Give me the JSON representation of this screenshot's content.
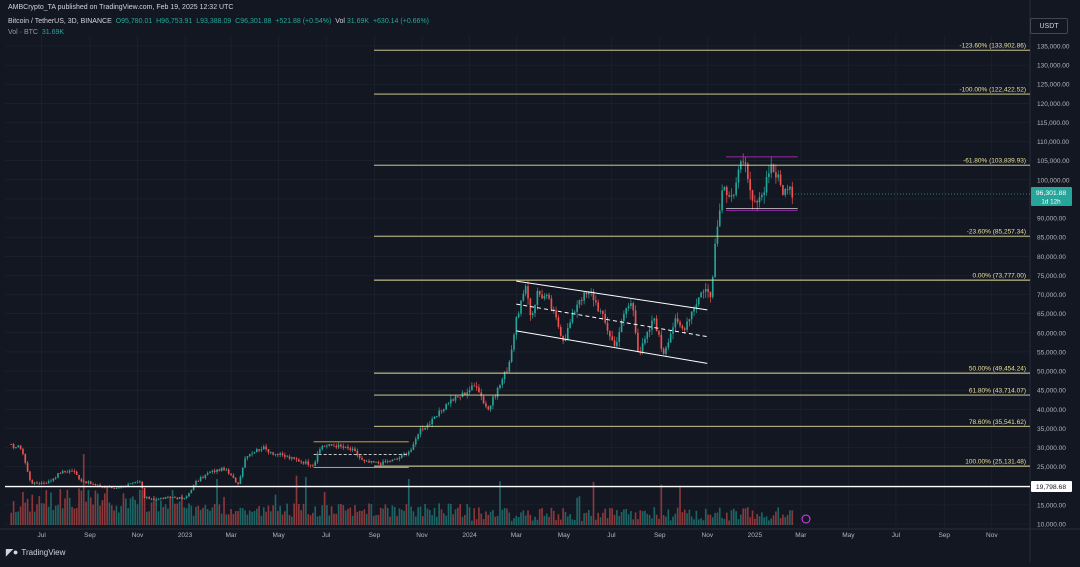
{
  "header": {
    "publisher_line": "AMBCrypto_TA published on TradingView.com, Feb 19, 2025 12:32 UTC",
    "symbol": "Bitcoin / TetherUS, 3D, BINANCE",
    "open": "O95,780.01",
    "high": "H96,753.91",
    "low": "L93,388.09",
    "close": "C96,301.88",
    "change": "+521.88 (+0.54%)",
    "vol_label": "Vol",
    "vol_value": "31.69K",
    "vol_change": "+630.14 (+0.66%)",
    "vol_line_label": "Vol · BTC",
    "vol_line_value": "31.69K"
  },
  "currency": "USDT",
  "brand": "TradingView",
  "current_price_label": {
    "price": "96,301.88",
    "countdown": "1d 12h"
  },
  "support_label": "19,798.68",
  "colors": {
    "background": "#131722",
    "up": "#26a69a",
    "down": "#ef5350",
    "fib": "#e8e09a",
    "grid": "#1f2433",
    "channel": "#ffffff",
    "range_box": "#9c27b0",
    "price_tag": "#26a69a"
  },
  "chart_data": {
    "type": "candlestick",
    "symbol": "BTC/USDT",
    "timeframe": "3D",
    "y_ticks": [
      "135,000.00",
      "130,000.00",
      "125,000.00",
      "120,000.00",
      "115,000.00",
      "110,000.00",
      "105,000.00",
      "100,000.00",
      "95,000.00",
      "90,000.00",
      "85,000.00",
      "80,000.00",
      "75,000.00",
      "70,000.00",
      "65,000.00",
      "60,000.00",
      "55,000.00",
      "50,000.00",
      "45,000.00",
      "40,000.00",
      "35,000.00",
      "30,000.00",
      "25,000.00",
      "20,000.00",
      "15,000.00",
      "10,000.00"
    ],
    "y_tick_values": [
      135000,
      130000,
      125000,
      120000,
      115000,
      110000,
      105000,
      100000,
      95000,
      90000,
      85000,
      80000,
      75000,
      70000,
      65000,
      60000,
      55000,
      50000,
      45000,
      40000,
      35000,
      30000,
      25000,
      20000,
      15000,
      10000
    ],
    "x_ticks": [
      "Jul",
      "Sep",
      "Nov",
      "2023",
      "Mar",
      "May",
      "Jul",
      "Sep",
      "Nov",
      "2024",
      "Mar",
      "May",
      "Jul",
      "Sep",
      "Nov",
      "2025",
      "Mar",
      "May",
      "Jul",
      "Sep",
      "Nov"
    ],
    "x_tick_dates": [
      "2022-07-01",
      "2022-09-01",
      "2022-11-01",
      "2023-01-01",
      "2023-03-01",
      "2023-05-01",
      "2023-07-01",
      "2023-09-01",
      "2023-11-01",
      "2024-01-01",
      "2024-03-01",
      "2024-05-01",
      "2024-07-01",
      "2024-09-01",
      "2024-11-01",
      "2025-01-01",
      "2025-03-01",
      "2025-05-01",
      "2025-07-01",
      "2025-09-01",
      "2025-11-01"
    ],
    "price_path": [
      [
        "2022-05-20",
        30500
      ],
      [
        "2022-06-05",
        30000
      ],
      [
        "2022-06-15",
        22000
      ],
      [
        "2022-06-20",
        20500
      ],
      [
        "2022-07-10",
        21000
      ],
      [
        "2022-07-25",
        23500
      ],
      [
        "2022-08-10",
        24000
      ],
      [
        "2022-08-20",
        21500
      ],
      [
        "2022-09-10",
        20000
      ],
      [
        "2022-10-01",
        19400
      ],
      [
        "2022-10-25",
        20500
      ],
      [
        "2022-11-05",
        21000
      ],
      [
        "2022-11-10",
        16800
      ],
      [
        "2022-11-25",
        16500
      ],
      [
        "2022-12-15",
        17000
      ],
      [
        "2023-01-01",
        16600
      ],
      [
        "2023-01-15",
        21000
      ],
      [
        "2023-02-01",
        23500
      ],
      [
        "2023-02-20",
        24500
      ],
      [
        "2023-03-10",
        20500
      ],
      [
        "2023-03-20",
        28000
      ],
      [
        "2023-04-10",
        30000
      ],
      [
        "2023-04-25",
        28500
      ],
      [
        "2023-05-20",
        27000
      ],
      [
        "2023-06-15",
        25500
      ],
      [
        "2023-06-25",
        30500
      ],
      [
        "2023-07-15",
        30500
      ],
      [
        "2023-08-05",
        29200
      ],
      [
        "2023-08-18",
        26200
      ],
      [
        "2023-09-10",
        25900
      ],
      [
        "2023-09-30",
        27000
      ],
      [
        "2023-10-20",
        29800
      ],
      [
        "2023-10-28",
        34500
      ],
      [
        "2023-11-15",
        37000
      ],
      [
        "2023-12-05",
        42000
      ],
      [
        "2023-12-20",
        43500
      ],
      [
        "2024-01-10",
        46500
      ],
      [
        "2024-01-20",
        41500
      ],
      [
        "2024-01-25",
        40000
      ],
      [
        "2024-02-10",
        47000
      ],
      [
        "2024-02-20",
        51500
      ],
      [
        "2024-02-28",
        61000
      ],
      [
        "2024-03-05",
        67000
      ],
      [
        "2024-03-14",
        71500
      ],
      [
        "2024-03-20",
        64000
      ],
      [
        "2024-03-28",
        70500
      ],
      [
        "2024-04-10",
        69000
      ],
      [
        "2024-04-20",
        64000
      ],
      [
        "2024-05-01",
        58000
      ],
      [
        "2024-05-20",
        69000
      ],
      [
        "2024-06-05",
        70500
      ],
      [
        "2024-06-20",
        64000
      ],
      [
        "2024-07-05",
        56500
      ],
      [
        "2024-07-20",
        66500
      ],
      [
        "2024-07-28",
        68000
      ],
      [
        "2024-08-05",
        54000
      ],
      [
        "2024-08-25",
        64000
      ],
      [
        "2024-09-05",
        54500
      ],
      [
        "2024-09-20",
        63000
      ],
      [
        "2024-10-01",
        61000
      ],
      [
        "2024-10-15",
        67000
      ],
      [
        "2024-10-28",
        72000
      ],
      [
        "2024-11-05",
        69500
      ],
      [
        "2024-11-10",
        80000
      ],
      [
        "2024-11-15",
        90000
      ],
      [
        "2024-11-22",
        98000
      ],
      [
        "2024-12-05",
        96500
      ],
      [
        "2024-12-17",
        106000
      ],
      [
        "2024-12-28",
        93500
      ],
      [
        "2025-01-10",
        94500
      ],
      [
        "2025-01-20",
        104500
      ],
      [
        "2025-01-28",
        101500
      ],
      [
        "2025-02-05",
        97500
      ],
      [
        "2025-02-19",
        96301.88
      ]
    ],
    "fibonacci_levels": [
      {
        "label": "-123.60% (133,902.86)",
        "value": 133902.86
      },
      {
        "label": "-100.00% (122,422.52)",
        "value": 122422.52
      },
      {
        "label": "-61.80% (103,839.93)",
        "value": 103839.93
      },
      {
        "label": "-23.60% (85,257.34)",
        "value": 85257.34
      },
      {
        "label": "0.00% (73,777.00)",
        "value": 73777.0
      },
      {
        "label": "50.00% (49,454.24)",
        "value": 49454.24
      },
      {
        "label": "61.80% (43,714.07)",
        "value": 43714.07
      },
      {
        "label": "78.60% (35,541.62)",
        "value": 35541.62
      },
      {
        "label": "100.00% (25,131.48)",
        "value": 25131.48
      }
    ],
    "support_line": 19798.68,
    "last_price": 96301.88,
    "channel": {
      "upper": [
        [
          "2024-03-01",
          73500
        ],
        [
          "2024-11-01",
          66000
        ]
      ],
      "lower": [
        [
          "2024-03-01",
          60500
        ],
        [
          "2024-11-01",
          52000
        ]
      ],
      "mid": [
        [
          "2024-03-01",
          67500
        ],
        [
          "2024-11-01",
          59000
        ]
      ]
    },
    "ranges": [
      {
        "from": "2023-06-15",
        "to": "2023-10-15",
        "high": 31500,
        "low": 24800
      },
      {
        "from": "2024-11-25",
        "to": "2025-02-25",
        "high": 106000,
        "low": 92000
      }
    ],
    "grid": true
  }
}
